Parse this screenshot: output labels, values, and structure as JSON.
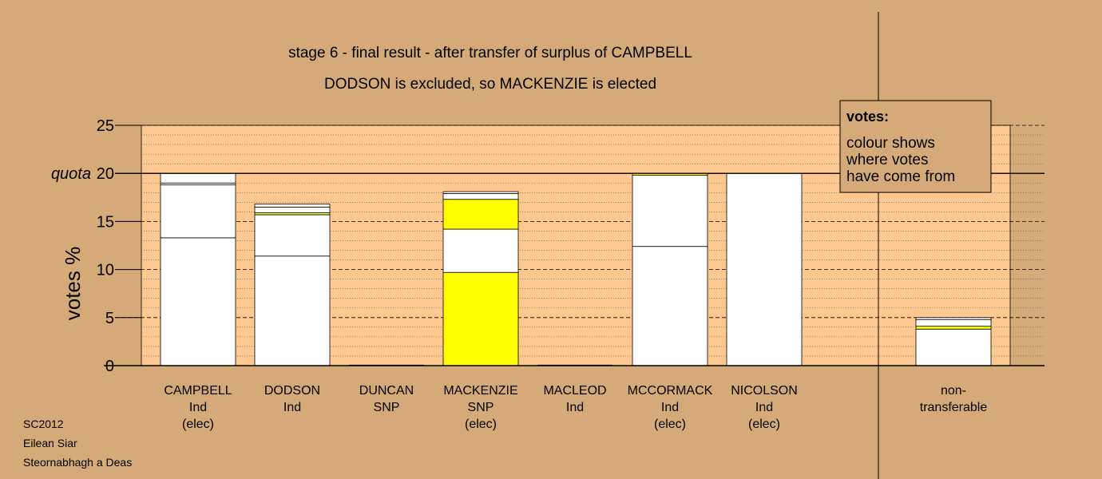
{
  "chart_data": {
    "type": "bar",
    "stacked": true,
    "title": "stage 6 - final result - after transfer of surplus of CAMPBELL",
    "subtitle": "DODSON is excluded, so MACKENZIE is elected",
    "ylabel": "votes %",
    "ylim": [
      0,
      25
    ],
    "yticks": [
      0,
      5,
      10,
      15,
      20,
      25
    ],
    "quota": {
      "label": "quota",
      "value": 20
    },
    "grid": true,
    "legend": {
      "title": "votes:",
      "text": [
        "colour shows",
        "where votes",
        "have come from"
      ],
      "placement": "top-right"
    },
    "candidates": [
      {
        "name": "CAMPBELL",
        "party": "Ind",
        "status": "(elec)",
        "segments": [
          {
            "value": 13.3,
            "color": "#ffffff"
          },
          {
            "value": 5.5,
            "color": "#ffffff"
          },
          {
            "value": 0.2,
            "color": "#ffffff"
          },
          {
            "value": 1.0,
            "color": "#ffffff"
          }
        ]
      },
      {
        "name": "DODSON",
        "party": "Ind",
        "status": "",
        "segments": [
          {
            "value": 11.4,
            "color": "#ffffff"
          },
          {
            "value": 4.3,
            "color": "#ffffff"
          },
          {
            "value": 0.2,
            "color": "#ffff00"
          },
          {
            "value": 0.6,
            "color": "#ffffff"
          },
          {
            "value": 0.3,
            "color": "#ffffff"
          }
        ]
      },
      {
        "name": "DUNCAN",
        "party": "SNP",
        "status": "",
        "segments": []
      },
      {
        "name": "MACKENZIE",
        "party": "SNP",
        "status": "(elec)",
        "segments": [
          {
            "value": 9.7,
            "color": "#ffff00"
          },
          {
            "value": 4.5,
            "color": "#ffffff"
          },
          {
            "value": 3.1,
            "color": "#ffff00"
          },
          {
            "value": 0.6,
            "color": "#ffffff"
          },
          {
            "value": 0.2,
            "color": "#ffffff"
          }
        ]
      },
      {
        "name": "MACLEOD",
        "party": "Ind",
        "status": "",
        "segments": []
      },
      {
        "name": "MCCORMACK",
        "party": "Ind",
        "status": "(elec)",
        "segments": [
          {
            "value": 12.4,
            "color": "#ffffff"
          },
          {
            "value": 7.4,
            "color": "#ffffff"
          },
          {
            "value": 0.2,
            "color": "#ffff00"
          }
        ]
      },
      {
        "name": "NICOLSON",
        "party": "Ind",
        "status": "(elec)",
        "segments": [
          {
            "value": 20.0,
            "color": "#ffffff"
          }
        ]
      }
    ],
    "nontransferable": {
      "label": [
        "non-",
        "transferable"
      ],
      "segments": [
        {
          "value": 3.8,
          "color": "#ffffff"
        },
        {
          "value": 0.3,
          "color": "#ffff00"
        },
        {
          "value": 0.7,
          "color": "#ffffff"
        },
        {
          "value": 0.2,
          "color": "#ffffff"
        }
      ]
    }
  },
  "colors": {
    "background": "#d4aa78",
    "plot_area": "#ffc890",
    "yellow": "#ffff00",
    "white": "#ffffff"
  },
  "footer": [
    "SC2012",
    "Eilean Siar",
    "Steornabhagh a Deas"
  ]
}
